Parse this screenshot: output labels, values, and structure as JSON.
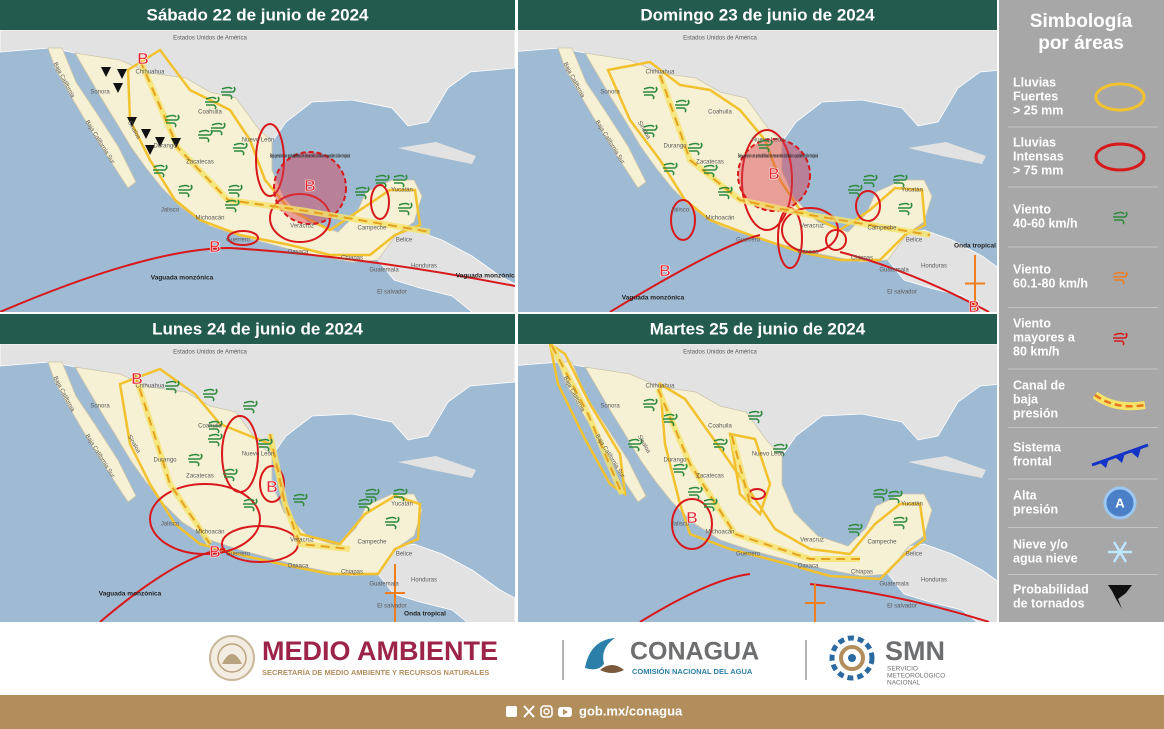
{
  "panels": [
    {
      "title": "Sábado 22 de junio de 2024",
      "map_labels": [
        "Estados Unidos de América",
        "Sonora",
        "Chihuahua",
        "Coahuila",
        "Nuevo León",
        "Durango",
        "Zacatecas",
        "Jalisco",
        "Michoacán",
        "Guerrero",
        "Oaxaca",
        "Veracruz",
        "Chiapas",
        "Campeche",
        "Yucatán",
        "Belice",
        "Guatemala",
        "Honduras",
        "El salvador",
        "Baja California",
        "Baja California Sur",
        "Sinaloa"
      ],
      "low_pressure_marks": [
        "B",
        "B",
        "B"
      ],
      "annotations": [
        "Baja presión con probabilidad de desarrollo ciclónico o posible ciclón tropical",
        "Vaguada monzónica",
        "Vaguada monzónica"
      ]
    },
    {
      "title": "Domingo 23 de junio de 2024",
      "map_labels": [
        "Estados Unidos de América",
        "Sonora",
        "Chihuahua",
        "Coahuila",
        "Nuevo León",
        "Durango",
        "Zacatecas",
        "Jalisco",
        "Michoacán",
        "Guerrero",
        "Oaxaca",
        "Veracruz",
        "Chiapas",
        "Campeche",
        "Yucatán",
        "Belice",
        "Guatemala",
        "Honduras",
        "El salvador",
        "Baja California",
        "Baja California Sur",
        "Sinaloa"
      ],
      "low_pressure_marks": [
        "B",
        "B",
        "B"
      ],
      "annotations": [
        "Baja presión con probabilidad de desarrollo ciclónico o posible ciclón tropical",
        "Vaguada monzónica",
        "Onda tropical"
      ]
    },
    {
      "title": "Lunes 24 de junio de 2024",
      "map_labels": [
        "Estados Unidos de América",
        "Sonora",
        "Chihuahua",
        "Coahuila",
        "Nuevo León",
        "Durango",
        "Zacatecas",
        "Jalisco",
        "Michoacán",
        "Guerrero",
        "Oaxaca",
        "Veracruz",
        "Chiapas",
        "Campeche",
        "Yucatán",
        "Belice",
        "Guatemala",
        "Honduras",
        "El salvador",
        "Baja California",
        "Baja California Sur",
        "Sinaloa"
      ],
      "low_pressure_marks": [
        "B",
        "B",
        "B"
      ],
      "annotations": [
        "Vaguada monzónica",
        "Onda tropical"
      ]
    },
    {
      "title": "Martes 25 de junio de 2024",
      "map_labels": [
        "Estados Unidos de América",
        "Sonora",
        "Chihuahua",
        "Coahuila",
        "Nuevo León",
        "Durango",
        "Zacatecas",
        "Jalisco",
        "Michoacán",
        "Guerrero",
        "Oaxaca",
        "Veracruz",
        "Chiapas",
        "Campeche",
        "Yucatán",
        "Belice",
        "Guatemala",
        "Honduras",
        "El salvador",
        "Baja California",
        "Baja California Sur",
        "Sinaloa"
      ],
      "low_pressure_marks": [
        "B"
      ]
    }
  ],
  "legend": {
    "title": [
      "Simbología",
      "por áreas"
    ],
    "items": [
      {
        "lines": [
          "Lluvias",
          "Fuertes",
          "> 25 mm"
        ]
      },
      {
        "lines": [
          "Lluvias",
          "Intensas",
          "> 75 mm"
        ]
      },
      {
        "lines": [
          "Viento",
          "40-60 km/h"
        ]
      },
      {
        "lines": [
          "Viento",
          "60.1-80 km/h"
        ]
      },
      {
        "lines": [
          "Viento",
          "mayores a",
          "80 km/h"
        ]
      },
      {
        "lines": [
          "Canal de",
          "baja",
          "presión"
        ]
      },
      {
        "lines": [
          "Sistema",
          "frontal"
        ]
      },
      {
        "lines": [
          "Alta",
          "presión"
        ],
        "icon_text": "A"
      },
      {
        "lines": [
          "Nieve y/o",
          "agua nieve"
        ]
      },
      {
        "lines": [
          "Probabilidad",
          "de tornados"
        ]
      }
    ]
  },
  "footer": {
    "semarnat": {
      "name": "MEDIO AMBIENTE",
      "subtitle": "SECRETARÍA DE MEDIO AMBIENTE Y RECURSOS NATURALES"
    },
    "conagua": {
      "name": "CONAGUA",
      "subtitle": "COMISIÓN NACIONAL DEL AGUA"
    },
    "smn": {
      "name": "SMN",
      "subtitle": [
        "SERVICIO",
        "METEOROLÓGICO",
        "NACIONAL"
      ]
    },
    "link": "gob.mx/conagua"
  }
}
